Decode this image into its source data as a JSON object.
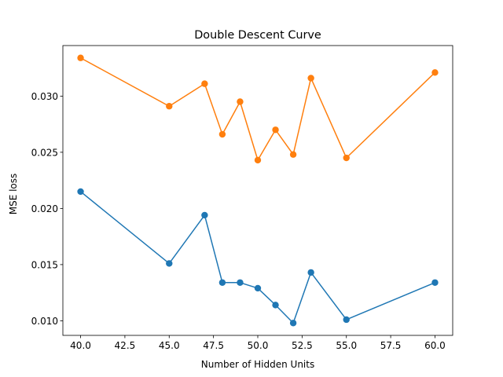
{
  "chart_data": {
    "type": "line",
    "title": "Double Descent Curve",
    "xlabel": "Number of Hidden Units",
    "ylabel": "MSE loss",
    "xlim": [
      39.0,
      61.0
    ],
    "ylim": [
      0.0087,
      0.0345
    ],
    "xticks": [
      40.0,
      42.5,
      45.0,
      47.5,
      50.0,
      52.5,
      55.0,
      57.5,
      60.0
    ],
    "xtick_labels": [
      "40.0",
      "42.5",
      "45.0",
      "47.5",
      "50.0",
      "52.5",
      "55.0",
      "57.5",
      "60.0"
    ],
    "yticks": [
      0.01,
      0.015,
      0.02,
      0.025,
      0.03
    ],
    "ytick_labels": [
      "0.010",
      "0.015",
      "0.020",
      "0.025",
      "0.030"
    ],
    "grid": false,
    "legend": "none",
    "x": [
      40,
      45,
      47,
      48,
      49,
      50,
      51,
      52,
      53,
      55,
      60
    ],
    "series": [
      {
        "color": "#1f77b4",
        "values": [
          0.0215,
          0.0151,
          0.0194,
          0.0134,
          0.0134,
          0.0129,
          0.0114,
          0.0098,
          0.0143,
          0.0101,
          0.0134
        ]
      },
      {
        "color": "#ff7f0e",
        "values": [
          0.0334,
          0.0291,
          0.0311,
          0.0266,
          0.0295,
          0.0243,
          0.027,
          0.0248,
          0.0316,
          0.0245,
          0.0321
        ]
      }
    ]
  }
}
